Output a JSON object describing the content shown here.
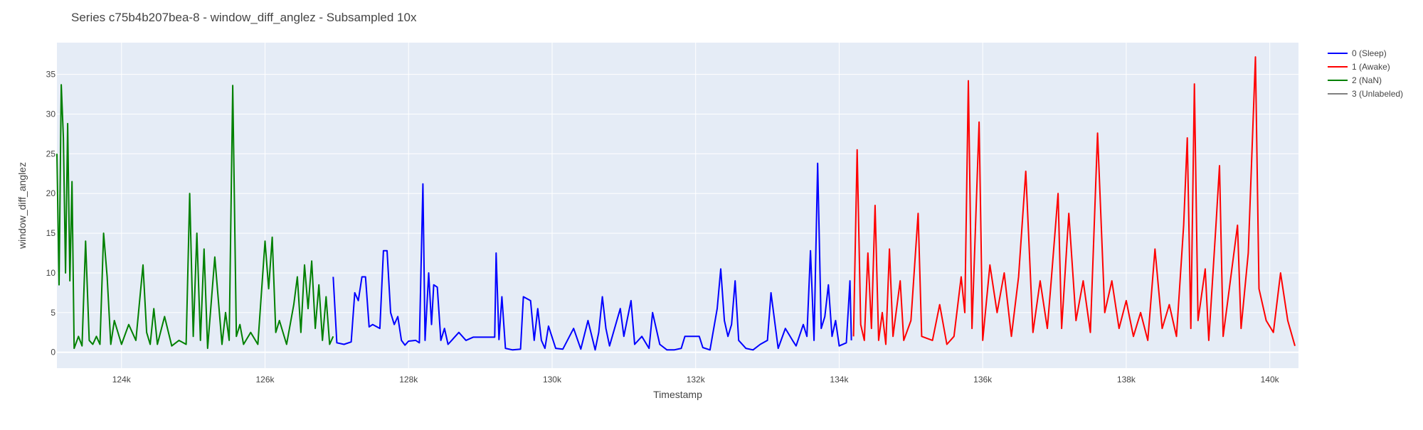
{
  "chart_data": {
    "type": "line",
    "title": "Series c75b4b207bea-8 - window_diff_anglez - Subsampled 10x",
    "xlabel": "Timestamp",
    "ylabel": "window_diff_anglez",
    "xlim": [
      123100,
      140400
    ],
    "ylim": [
      -2,
      39
    ],
    "x_ticks": [
      124000,
      126000,
      128000,
      130000,
      132000,
      134000,
      136000,
      138000,
      140000
    ],
    "x_tick_labels": [
      "124k",
      "126k",
      "128k",
      "130k",
      "132k",
      "134k",
      "136k",
      "138k",
      "140k"
    ],
    "y_ticks": [
      0,
      5,
      10,
      15,
      20,
      25,
      30,
      35
    ],
    "y_tick_labels": [
      "0",
      "5",
      "10",
      "15",
      "20",
      "25",
      "30",
      "35"
    ],
    "grid": true,
    "legend_position": "top-right, outside plot",
    "series": [
      {
        "name": "0 (Sleep)",
        "color": "#0000ff",
        "points": [
          [
            126950,
            9.5
          ],
          [
            127000,
            1.2
          ],
          [
            127100,
            1.0
          ],
          [
            127200,
            1.3
          ],
          [
            127250,
            7.5
          ],
          [
            127300,
            6.5
          ],
          [
            127350,
            9.5
          ],
          [
            127400,
            9.5
          ],
          [
            127450,
            3.2
          ],
          [
            127500,
            3.5
          ],
          [
            127600,
            3.0
          ],
          [
            127650,
            12.8
          ],
          [
            127700,
            12.8
          ],
          [
            127750,
            5.0
          ],
          [
            127800,
            3.5
          ],
          [
            127850,
            4.5
          ],
          [
            127900,
            1.5
          ],
          [
            127950,
            0.9
          ],
          [
            128000,
            1.4
          ],
          [
            128100,
            1.5
          ],
          [
            128150,
            1.2
          ],
          [
            128200,
            21.2
          ],
          [
            128230,
            1.5
          ],
          [
            128280,
            10.0
          ],
          [
            128320,
            3.5
          ],
          [
            128350,
            8.5
          ],
          [
            128400,
            8.2
          ],
          [
            128450,
            1.5
          ],
          [
            128500,
            3.0
          ],
          [
            128550,
            1.0
          ],
          [
            128600,
            1.5
          ],
          [
            128700,
            2.5
          ],
          [
            128800,
            1.5
          ],
          [
            128900,
            1.9
          ],
          [
            129000,
            1.9
          ],
          [
            129100,
            1.9
          ],
          [
            129200,
            1.9
          ],
          [
            129220,
            12.5
          ],
          [
            129260,
            1.6
          ],
          [
            129300,
            7.0
          ],
          [
            129350,
            0.5
          ],
          [
            129450,
            0.3
          ],
          [
            129560,
            0.4
          ],
          [
            129600,
            7.0
          ],
          [
            129700,
            6.5
          ],
          [
            129750,
            1.5
          ],
          [
            129800,
            5.5
          ],
          [
            129850,
            1.5
          ],
          [
            129900,
            0.5
          ],
          [
            129950,
            3.3
          ],
          [
            130050,
            0.5
          ],
          [
            130150,
            0.4
          ],
          [
            130300,
            3.0
          ],
          [
            130400,
            0.4
          ],
          [
            130500,
            4.0
          ],
          [
            130600,
            0.3
          ],
          [
            130650,
            2.5
          ],
          [
            130700,
            7.0
          ],
          [
            130750,
            3.0
          ],
          [
            130800,
            0.8
          ],
          [
            130950,
            5.5
          ],
          [
            131000,
            2.0
          ],
          [
            131100,
            6.5
          ],
          [
            131150,
            1.0
          ],
          [
            131250,
            2.0
          ],
          [
            131350,
            0.5
          ],
          [
            131400,
            5.0
          ],
          [
            131500,
            1.0
          ],
          [
            131600,
            0.3
          ],
          [
            131700,
            0.3
          ],
          [
            131800,
            0.5
          ],
          [
            131850,
            2.0
          ],
          [
            131950,
            2.0
          ],
          [
            132050,
            2.0
          ],
          [
            132100,
            0.6
          ],
          [
            132200,
            0.3
          ],
          [
            132300,
            5.5
          ],
          [
            132350,
            10.5
          ],
          [
            132400,
            4.0
          ],
          [
            132450,
            2.0
          ],
          [
            132500,
            3.5
          ],
          [
            132550,
            9.0
          ],
          [
            132600,
            1.5
          ],
          [
            132700,
            0.5
          ],
          [
            132800,
            0.3
          ],
          [
            132900,
            1.0
          ],
          [
            133000,
            1.5
          ],
          [
            133050,
            7.5
          ],
          [
            133150,
            0.5
          ],
          [
            133250,
            3.0
          ],
          [
            133350,
            1.5
          ],
          [
            133400,
            0.8
          ],
          [
            133500,
            3.5
          ],
          [
            133550,
            2.0
          ],
          [
            133600,
            12.8
          ],
          [
            133650,
            1.5
          ],
          [
            133700,
            23.8
          ],
          [
            133750,
            3.0
          ],
          [
            133800,
            4.5
          ],
          [
            133850,
            8.5
          ],
          [
            133900,
            2.0
          ],
          [
            133950,
            4.0
          ],
          [
            134000,
            0.8
          ],
          [
            134100,
            1.2
          ],
          [
            134150,
            9.0
          ],
          [
            134170,
            1.5
          ]
        ]
      },
      {
        "name": "1 (Awake)",
        "color": "#ff0000",
        "points": [
          [
            134200,
            2.0
          ],
          [
            134250,
            25.5
          ],
          [
            134300,
            3.5
          ],
          [
            134350,
            1.5
          ],
          [
            134400,
            12.5
          ],
          [
            134450,
            3.0
          ],
          [
            134500,
            18.5
          ],
          [
            134550,
            1.5
          ],
          [
            134600,
            5.0
          ],
          [
            134650,
            1.0
          ],
          [
            134700,
            13.0
          ],
          [
            134750,
            2.0
          ],
          [
            134850,
            9.0
          ],
          [
            134900,
            1.5
          ],
          [
            135000,
            4.0
          ],
          [
            135100,
            17.5
          ],
          [
            135150,
            2.0
          ],
          [
            135300,
            1.5
          ],
          [
            135400,
            6.0
          ],
          [
            135500,
            1.0
          ],
          [
            135600,
            2.0
          ],
          [
            135700,
            9.5
          ],
          [
            135750,
            5.0
          ],
          [
            135800,
            34.2
          ],
          [
            135850,
            3.0
          ],
          [
            135950,
            29.0
          ],
          [
            136000,
            1.5
          ],
          [
            136100,
            11.0
          ],
          [
            136200,
            5.0
          ],
          [
            136300,
            10.0
          ],
          [
            136400,
            2.0
          ],
          [
            136500,
            9.5
          ],
          [
            136600,
            22.8
          ],
          [
            136700,
            2.5
          ],
          [
            136800,
            9.0
          ],
          [
            136900,
            3.0
          ],
          [
            136950,
            8.5
          ],
          [
            137050,
            20.0
          ],
          [
            137100,
            3.0
          ],
          [
            137200,
            17.5
          ],
          [
            137300,
            4.0
          ],
          [
            137400,
            9.0
          ],
          [
            137500,
            2.5
          ],
          [
            137600,
            27.6
          ],
          [
            137700,
            5.0
          ],
          [
            137800,
            9.0
          ],
          [
            137900,
            3.0
          ],
          [
            138000,
            6.5
          ],
          [
            138100,
            2.0
          ],
          [
            138200,
            5.0
          ],
          [
            138300,
            1.5
          ],
          [
            138400,
            13.0
          ],
          [
            138500,
            3.0
          ],
          [
            138600,
            6.0
          ],
          [
            138700,
            2.0
          ],
          [
            138800,
            16.0
          ],
          [
            138850,
            27.0
          ],
          [
            138900,
            3.0
          ],
          [
            138950,
            33.8
          ],
          [
            139000,
            4.0
          ],
          [
            139100,
            10.5
          ],
          [
            139150,
            1.5
          ],
          [
            139250,
            16.0
          ],
          [
            139300,
            23.5
          ],
          [
            139350,
            2.0
          ],
          [
            139450,
            9.0
          ],
          [
            139550,
            16.0
          ],
          [
            139600,
            3.0
          ],
          [
            139700,
            12.5
          ],
          [
            139800,
            37.2
          ],
          [
            139850,
            8.0
          ],
          [
            139950,
            4.0
          ],
          [
            140050,
            2.5
          ],
          [
            140150,
            10.0
          ],
          [
            140250,
            4.0
          ],
          [
            140350,
            0.8
          ]
        ]
      },
      {
        "name": "2 (NaN)",
        "color": "#008000",
        "points": [
          [
            123100,
            25.0
          ],
          [
            123130,
            8.5
          ],
          [
            123160,
            33.7
          ],
          [
            123190,
            27.0
          ],
          [
            123220,
            10.0
          ],
          [
            123250,
            28.8
          ],
          [
            123280,
            9.0
          ],
          [
            123310,
            21.5
          ],
          [
            123340,
            0.5
          ],
          [
            123400,
            2.0
          ],
          [
            123450,
            0.8
          ],
          [
            123500,
            14.0
          ],
          [
            123550,
            1.5
          ],
          [
            123600,
            1.0
          ],
          [
            123650,
            2.0
          ],
          [
            123700,
            1.0
          ],
          [
            123750,
            15.0
          ],
          [
            123800,
            9.5
          ],
          [
            123850,
            1.0
          ],
          [
            123900,
            4.0
          ],
          [
            124000,
            1.0
          ],
          [
            124100,
            3.5
          ],
          [
            124200,
            1.5
          ],
          [
            124300,
            11.0
          ],
          [
            124350,
            2.5
          ],
          [
            124400,
            1.0
          ],
          [
            124450,
            5.5
          ],
          [
            124500,
            1.0
          ],
          [
            124600,
            4.5
          ],
          [
            124700,
            0.8
          ],
          [
            124800,
            1.5
          ],
          [
            124900,
            1.0
          ],
          [
            124950,
            20.0
          ],
          [
            125000,
            2.0
          ],
          [
            125050,
            15.0
          ],
          [
            125100,
            1.5
          ],
          [
            125150,
            13.0
          ],
          [
            125200,
            0.5
          ],
          [
            125300,
            12.0
          ],
          [
            125400,
            1.0
          ],
          [
            125450,
            5.0
          ],
          [
            125500,
            1.5
          ],
          [
            125550,
            33.6
          ],
          [
            125600,
            2.0
          ],
          [
            125650,
            3.5
          ],
          [
            125700,
            1.0
          ],
          [
            125800,
            2.5
          ],
          [
            125900,
            1.0
          ],
          [
            126000,
            14.0
          ],
          [
            126050,
            8.0
          ],
          [
            126100,
            14.5
          ],
          [
            126150,
            2.5
          ],
          [
            126200,
            4.0
          ],
          [
            126300,
            1.0
          ],
          [
            126400,
            6.0
          ],
          [
            126450,
            9.5
          ],
          [
            126500,
            2.5
          ],
          [
            126550,
            11.0
          ],
          [
            126600,
            5.5
          ],
          [
            126650,
            11.5
          ],
          [
            126700,
            3.0
          ],
          [
            126750,
            8.5
          ],
          [
            126800,
            1.5
          ],
          [
            126850,
            7.0
          ],
          [
            126900,
            1.0
          ],
          [
            126950,
            2.0
          ]
        ]
      },
      {
        "name": "3 (Unlabeled)",
        "color": "#808080",
        "points": []
      }
    ]
  }
}
